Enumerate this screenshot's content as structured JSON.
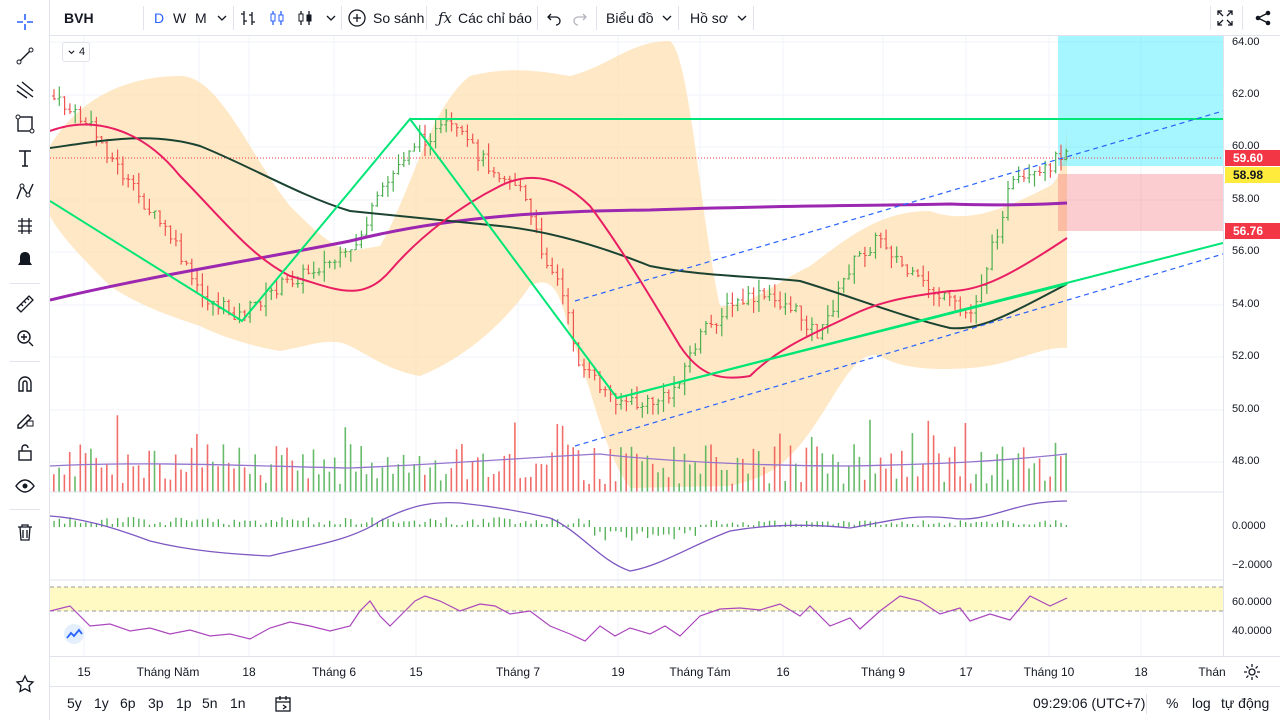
{
  "symbol": "BVH",
  "intervals": [
    "D",
    "W",
    "M"
  ],
  "toolbar": {
    "compare_label": "So sánh",
    "indicators_label": "Các chỉ báo",
    "chart_label": "Biểu đồ",
    "profile_label": "Hồ sơ"
  },
  "legend_collapsed_count": "4",
  "price_scale": {
    "ticks": [
      "64.00",
      "62.00",
      "60.00",
      "58.00",
      "56.00",
      "54.00",
      "52.00",
      "50.00",
      "48.00"
    ],
    "badges": [
      {
        "value": "59.60",
        "bg": "#f23645",
        "fg": "#ffffff"
      },
      {
        "value": "58.98",
        "bg": "#ffeb3b",
        "fg": "#131722"
      },
      {
        "value": "56.76",
        "bg": "#f23645",
        "fg": "#ffffff"
      }
    ],
    "macd_ticks": [
      "0.0000",
      "−2.0000"
    ],
    "rsi_ticks": [
      "60.0000",
      "40.0000"
    ]
  },
  "time_axis": [
    "15",
    "Tháng Năm",
    "18",
    "Tháng 6",
    "15",
    "Tháng 7",
    "19",
    "Tháng Tám",
    "16",
    "Tháng 9",
    "17",
    "Tháng 10",
    "18",
    "Thán"
  ],
  "bottom_bar": {
    "ranges": [
      "5y",
      "1y",
      "6p",
      "3p",
      "1p",
      "5n",
      "1n"
    ],
    "clock": "09:29:06 (UTC+7)",
    "percent": "%",
    "log": "log",
    "auto": "tự động"
  },
  "colors": {
    "up": "#4caf50",
    "down": "#ef5350",
    "ema_fast": "#e91e63",
    "ema_slow": "#1b5e20",
    "ema_long": "#9c27b0",
    "trend": "#00e676",
    "bands": "#ffe0b2",
    "accent": "#2962ff"
  }
}
